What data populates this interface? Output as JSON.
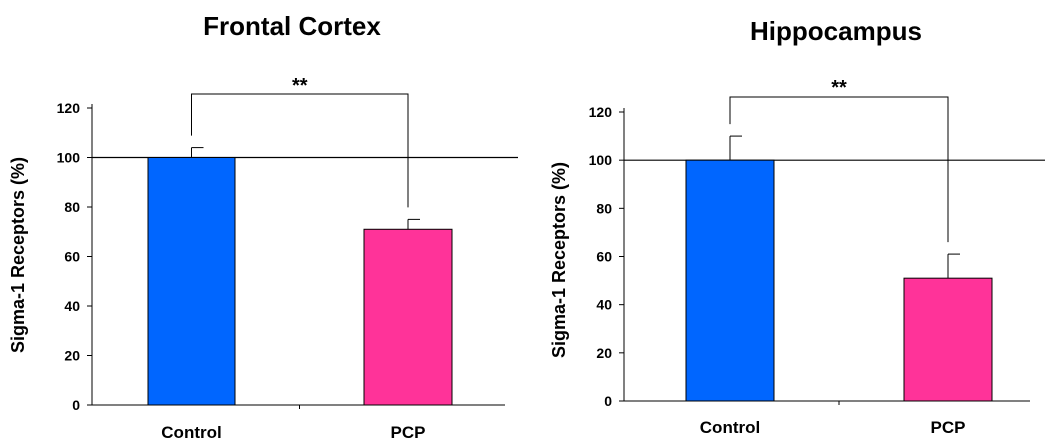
{
  "chart_data": [
    {
      "type": "bar",
      "title": "Frontal Cortex",
      "xlabel": "",
      "ylabel": "Sigma-1 Receptors (%)",
      "categories": [
        "Control",
        "PCP"
      ],
      "values": [
        100,
        71
      ],
      "errors": [
        4,
        4
      ],
      "colors": [
        "#0066ff",
        "#ff3399"
      ],
      "ylim": [
        0,
        120
      ],
      "yticks": [
        "0",
        "20",
        "40",
        "60",
        "80",
        "100",
        "120"
      ],
      "reference_line": 100,
      "significance": "**"
    },
    {
      "type": "bar",
      "title": "Hippocampus",
      "xlabel": "",
      "ylabel": "Sigma-1 Receptors (%)",
      "categories": [
        "Control",
        "PCP"
      ],
      "values": [
        100,
        51
      ],
      "errors": [
        10,
        10
      ],
      "colors": [
        "#0066ff",
        "#ff3399"
      ],
      "ylim": [
        0,
        120
      ],
      "yticks": [
        "0",
        "20",
        "40",
        "60",
        "80",
        "100",
        "120"
      ],
      "reference_line": 100,
      "significance": "**"
    }
  ]
}
